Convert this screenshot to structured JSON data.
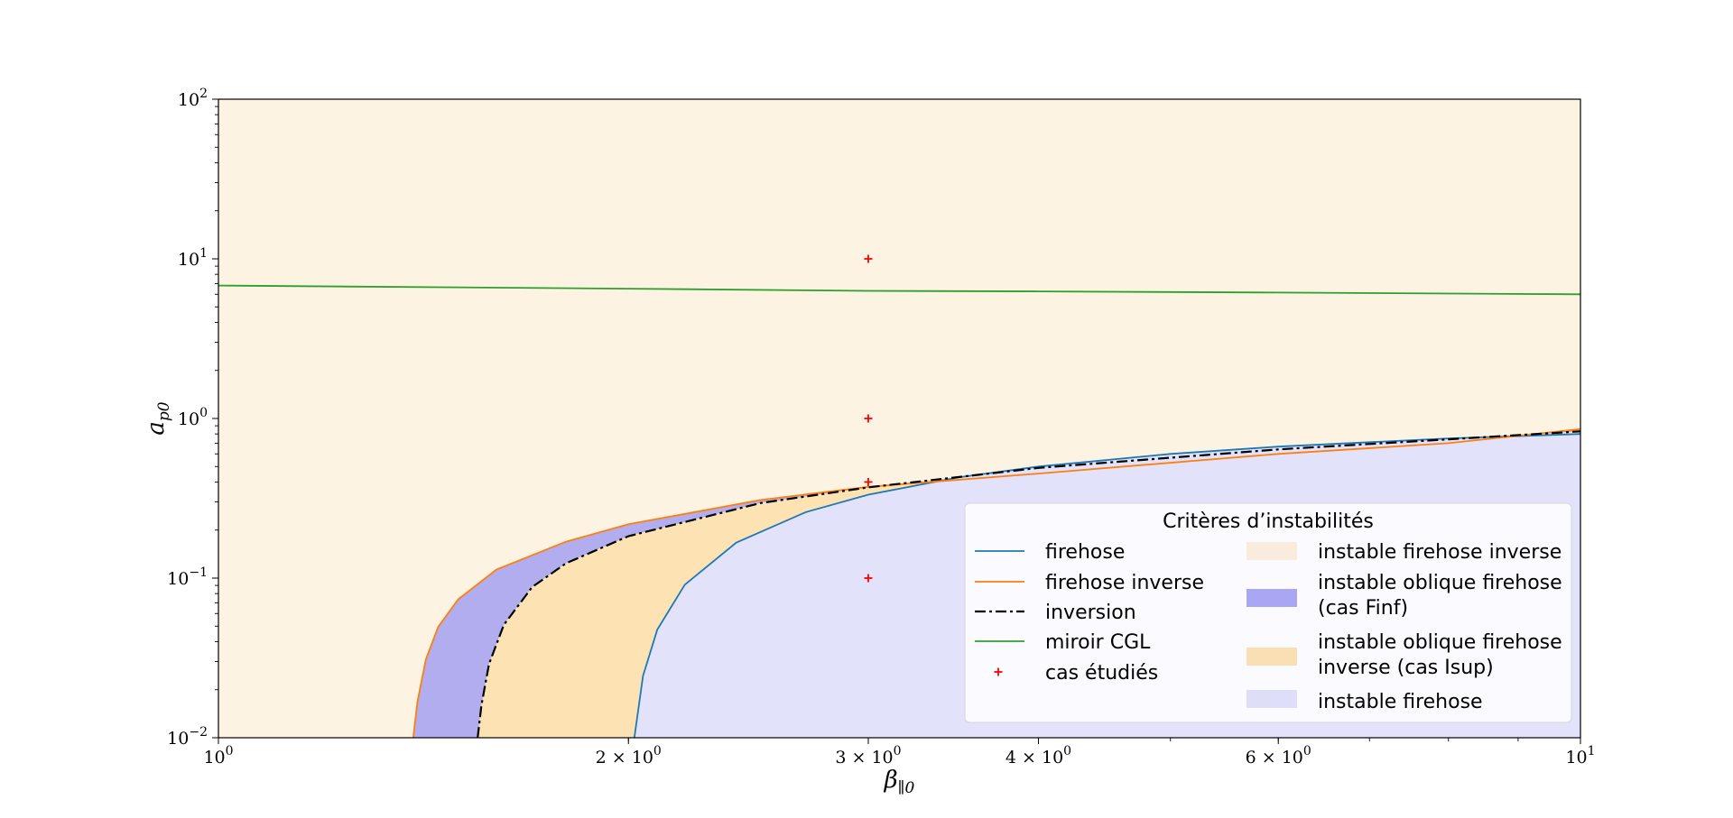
{
  "chart_data": {
    "type": "line",
    "xlabel": "β∥0",
    "ylabel": "ap0",
    "xscale": "log",
    "yscale": "log",
    "xlim": [
      1,
      10
    ],
    "ylim": [
      0.01,
      100
    ],
    "x_ticks": [
      {
        "value": 1,
        "base": "10",
        "exp": "0"
      },
      {
        "value": 2,
        "base": "2 × 10",
        "exp": "0"
      },
      {
        "value": 3,
        "base": "3 × 10",
        "exp": "0"
      },
      {
        "value": 4,
        "base": "4 × 10",
        "exp": "0"
      },
      {
        "value": 6,
        "base": "6 × 10",
        "exp": "0"
      },
      {
        "value": 10,
        "base": "10",
        "exp": "1"
      }
    ],
    "y_ticks": [
      {
        "value": 0.01,
        "base": "10",
        "exp": "−2"
      },
      {
        "value": 0.1,
        "base": "10",
        "exp": "−1"
      },
      {
        "value": 1,
        "base": "10",
        "exp": "0"
      },
      {
        "value": 10,
        "base": "10",
        "exp": "1"
      },
      {
        "value": 100,
        "base": "10",
        "exp": "2"
      }
    ],
    "grid": false,
    "series": [
      {
        "name": "firehose",
        "color": "#1f77b4",
        "style": "solid",
        "x": [
          2.02,
          2.05,
          2.1,
          2.2,
          2.4,
          2.7,
          3.0,
          3.5,
          4.0,
          5.0,
          6.0,
          8.0,
          10.0
        ],
        "y": [
          0.01,
          0.0244,
          0.0476,
          0.0909,
          0.1667,
          0.2593,
          0.3333,
          0.4286,
          0.5,
          0.6,
          0.6667,
          0.75,
          0.8
        ]
      },
      {
        "name": "firehose inverse",
        "color": "#ff7f0e",
        "style": "solid",
        "x": [
          1.39,
          1.4,
          1.42,
          1.45,
          1.5,
          1.6,
          1.8,
          2.0,
          2.5,
          3.0,
          4.0,
          6.0,
          8.0,
          10.0
        ],
        "y": [
          0.01,
          0.0168,
          0.0309,
          0.0495,
          0.0737,
          0.1132,
          0.1691,
          0.2174,
          0.3086,
          0.3731,
          0.4514,
          0.6,
          0.7,
          0.858
        ]
      },
      {
        "name": "inversion",
        "color": "#000000",
        "style": "dashdot",
        "x": [
          1.55,
          1.56,
          1.58,
          1.62,
          1.7,
          1.8,
          2.0,
          2.5,
          3.0,
          4.0,
          6.0,
          8.0,
          10.0
        ],
        "y": [
          0.01,
          0.016,
          0.029,
          0.051,
          0.088,
          0.124,
          0.183,
          0.295,
          0.37,
          0.49,
          0.64,
          0.74,
          0.83
        ]
      },
      {
        "name": "miroir CGL",
        "color": "#2ca02c",
        "style": "solid",
        "x": [
          1.0,
          2.0,
          3.0,
          4.0,
          6.0,
          10.0
        ],
        "y": [
          6.8,
          6.5,
          6.3,
          6.25,
          6.15,
          6.0
        ]
      }
    ],
    "markers": {
      "name": "cas étudiés",
      "color": "#ff0000",
      "symbol": "+",
      "points": [
        {
          "x": 3.0,
          "y": 10
        },
        {
          "x": 3.0,
          "y": 1
        },
        {
          "x": 3.0,
          "y": 0.4
        },
        {
          "x": 3.0,
          "y": 0.1
        }
      ]
    },
    "regions": [
      {
        "name": "instable firehose inverse",
        "color": "#fdf3e2"
      },
      {
        "name": "instable oblique firehose (cas Finf)",
        "color": "#b1adee"
      },
      {
        "name": "instable oblique firehose inverse (cas Isup)",
        "color": "#fde3b4"
      },
      {
        "name": "instable firehose",
        "color": "#e2e2fb"
      }
    ],
    "legend": {
      "title": "Critères d’instabilités",
      "placement": "lower right",
      "columns": 2,
      "entries_col1": [
        {
          "label": "firehose",
          "kind": "line",
          "color": "#1f77b4"
        },
        {
          "label": "firehose inverse",
          "kind": "line",
          "color": "#ff7f0e"
        },
        {
          "label": "inversion",
          "kind": "dashdot",
          "color": "#000000"
        },
        {
          "label": "miroir CGL",
          "kind": "line",
          "color": "#2ca02c"
        },
        {
          "label": "cas étudiés",
          "kind": "marker",
          "color": "#ff0000"
        }
      ],
      "entries_col2": [
        {
          "lines": [
            "instable firehose inverse"
          ],
          "color": "#f9ecdc"
        },
        {
          "lines": [
            "instable oblique firehose",
            "(cas Finf)"
          ],
          "color": "#a9a7f4"
        },
        {
          "lines": [
            "instable oblique firehose",
            "inverse (cas Isup)"
          ],
          "color": "#fadfb5"
        },
        {
          "lines": [
            "instable firehose"
          ],
          "color": "#dedef9"
        }
      ]
    }
  }
}
